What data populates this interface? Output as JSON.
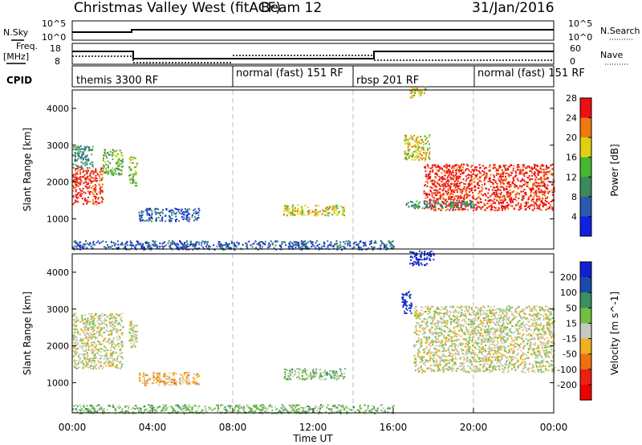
{
  "header": {
    "title": "Christmas Valley West (fitACF)",
    "beam": "Beam 12",
    "date": "31/Jan/2016"
  },
  "strip": {
    "nsky_label": "N.Sky",
    "nsearch_label": "N.Search",
    "scale_top": "10^5",
    "scale_bottom": "10^0",
    "freq_label": "Freq.",
    "freq_unit": "[MHz]",
    "freq_ticks": [
      "18",
      "8"
    ],
    "nave_label": "Nave",
    "nave_ticks": [
      "60",
      "0"
    ],
    "cpid_label": "CPID",
    "cpid_segments": [
      "themis 3300 RF",
      "normal (fast) 151 RF",
      "rbsp 201 RF",
      "normal (fast) 151 RF"
    ]
  },
  "chart_data": [
    {
      "type": "heatmap",
      "panel": "power",
      "ylabel": "Slant Range [km]",
      "y_ticks": [
        "1000",
        "2000",
        "3000",
        "4000"
      ],
      "ylim": [
        180,
        4500
      ],
      "xlim_hours": [
        0,
        24
      ],
      "colorbar_label": "Power [dB]",
      "colorbar_ticks": [
        "4",
        "8",
        "12",
        "16",
        "20",
        "24",
        "28"
      ],
      "colors": [
        "#1020e0",
        "#2a5ab0",
        "#3a8a5a",
        "#44b830",
        "#e0d010",
        "#f07810",
        "#ee1010"
      ],
      "regions": [
        {
          "t": [
            0.0,
            1.5
          ],
          "r": [
            1400,
            2400
          ],
          "level": 6
        },
        {
          "t": [
            1.5,
            2.5
          ],
          "r": [
            2200,
            2900
          ],
          "level": 3
        },
        {
          "t": [
            0.0,
            1.0
          ],
          "r": [
            2400,
            3000
          ],
          "level": 2
        },
        {
          "t": [
            2.8,
            3.2
          ],
          "r": [
            1900,
            2700
          ],
          "level": 3
        },
        {
          "t": [
            3.3,
            6.3
          ],
          "r": [
            950,
            1300
          ],
          "level": 1
        },
        {
          "t": [
            10.5,
            13.6
          ],
          "r": [
            1100,
            1400
          ],
          "level": 4
        },
        {
          "t": [
            16.5,
            17.8
          ],
          "r": [
            2600,
            3300
          ],
          "level": 4
        },
        {
          "t": [
            17.5,
            24.0
          ],
          "r": [
            1250,
            2500
          ],
          "level": 6
        },
        {
          "t": [
            16.5,
            20.0
          ],
          "r": [
            1300,
            1500
          ],
          "level": 2
        },
        {
          "t": [
            16.8,
            17.6
          ],
          "r": [
            4300,
            4600
          ],
          "level": 4
        },
        {
          "t": [
            0.0,
            16.0
          ],
          "r": [
            180,
            420
          ],
          "level": 1
        }
      ]
    },
    {
      "type": "heatmap",
      "panel": "velocity",
      "ylabel": "Slant Range [km]",
      "y_ticks": [
        "1000",
        "2000",
        "3000",
        "4000"
      ],
      "ylim": [
        180,
        4500
      ],
      "xlim_hours": [
        0,
        24
      ],
      "colorbar_label": "Velocity [m s^-1]",
      "colorbar_ticks": [
        "200",
        "100",
        "50",
        "15",
        "-15",
        "-50",
        "-100",
        "-200"
      ],
      "colors": [
        "#1020d0",
        "#1a4ab0",
        "#3a9060",
        "#70c040",
        "#c8c8c0",
        "#f0b020",
        "#f07010",
        "#ee2010",
        "#ee0000"
      ],
      "regions": [
        {
          "t": [
            0.0,
            2.5
          ],
          "r": [
            1400,
            2900
          ],
          "level": 4
        },
        {
          "t": [
            2.8,
            3.2
          ],
          "r": [
            1900,
            2700
          ],
          "level": 4
        },
        {
          "t": [
            3.3,
            6.3
          ],
          "r": [
            950,
            1300
          ],
          "level": 5
        },
        {
          "t": [
            10.5,
            13.6
          ],
          "r": [
            1100,
            1400
          ],
          "level": 3
        },
        {
          "t": [
            16.4,
            16.9
          ],
          "r": [
            2900,
            3500
          ],
          "level": 0
        },
        {
          "t": [
            16.8,
            18.0
          ],
          "r": [
            4200,
            4600
          ],
          "level": 0
        },
        {
          "t": [
            17.0,
            24.0
          ],
          "r": [
            1300,
            3100
          ],
          "level": 4
        },
        {
          "t": [
            0.0,
            16.0
          ],
          "r": [
            180,
            420
          ],
          "level": 3
        }
      ]
    }
  ],
  "x_axis": {
    "label": "Time UT",
    "ticks": [
      "00:00",
      "04:00",
      "08:00",
      "12:00",
      "16:00",
      "20:00",
      "00:00"
    ]
  }
}
